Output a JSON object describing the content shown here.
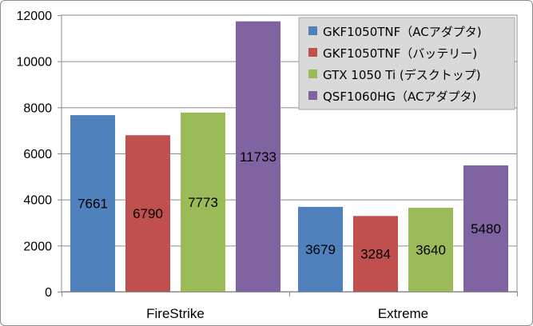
{
  "chart_data": {
    "type": "bar",
    "categories": [
      "FireStrike",
      "Extreme"
    ],
    "series": [
      {
        "name": "GKF1050TNF（ACアダプタ)",
        "color": "#4f81bd",
        "values": [
          7661,
          3679
        ]
      },
      {
        "name": "GKF1050TNF（バッテリー)",
        "color": "#c0504d",
        "values": [
          6790,
          3284
        ]
      },
      {
        "name": "GTX 1050 Ti (デスクトップ)",
        "color": "#9bbb59",
        "values": [
          7773,
          3640
        ]
      },
      {
        "name": "QSF1060HG（ACアダプタ)",
        "color": "#8064a2",
        "values": [
          11733,
          5480
        ]
      }
    ],
    "ylim": [
      0,
      12000
    ],
    "yticks": [
      0,
      2000,
      4000,
      6000,
      8000,
      10000,
      12000
    ],
    "grid": true,
    "legend_position": "top-right",
    "data_labels": true
  }
}
